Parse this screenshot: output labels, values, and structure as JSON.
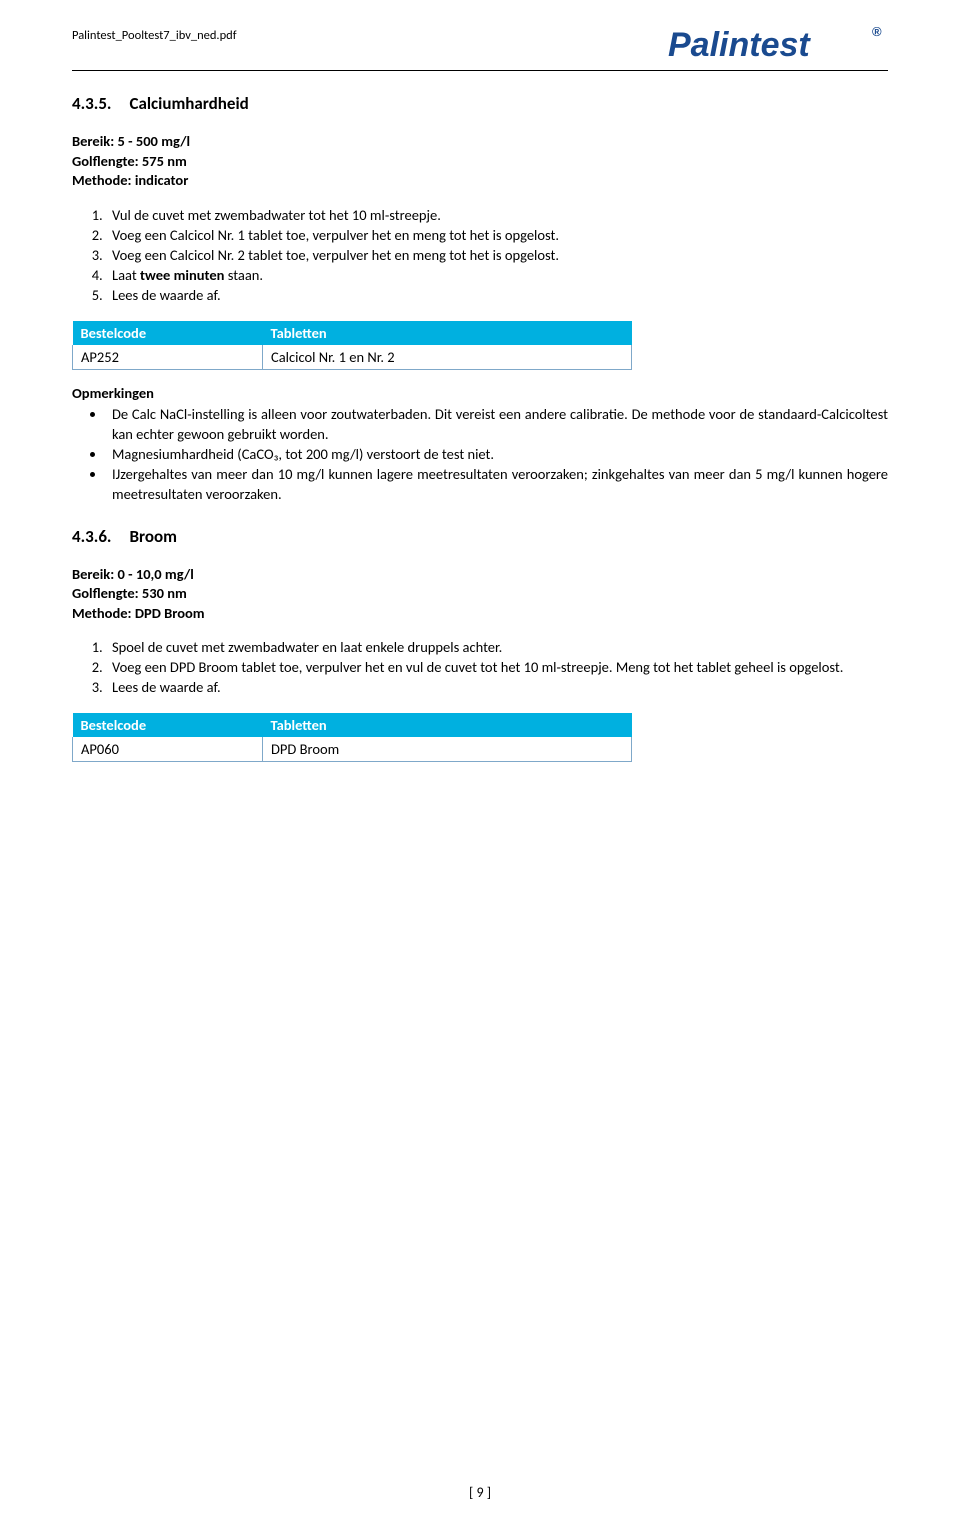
{
  "header": {
    "filename": "Palintest_Pooltest7_ibv_ned.pdf",
    "logo_text": "Palintest",
    "logo_color": "#1a4a8f"
  },
  "section1": {
    "number": "4.3.5.",
    "title": "Calciumhardheid",
    "bereik": "Bereik: 5 - 500 mg/l",
    "golflengte": "Golflengte: 575 nm",
    "methode": "Methode: indicator",
    "steps": [
      "Vul de cuvet met zwembadwater tot het 10 ml-streepje.",
      "Voeg een Calcicol Nr. 1 tablet toe, verpulver het en meng tot het is opgelost.",
      "Voeg een Calcicol Nr. 2 tablet toe, verpulver het en meng tot het is opgelost.",
      "Laat twee minuten staan.",
      "Lees de waarde af."
    ],
    "step_bold_fragment": "twee minuten",
    "table": {
      "headers": [
        "Bestelcode",
        "Tabletten"
      ],
      "row": [
        "AP252",
        "Calcicol Nr. 1 en Nr. 2"
      ]
    },
    "opm_title": "Opmerkingen",
    "opm": [
      "De Calc NaCl-instelling is alleen voor zoutwaterbaden. Dit vereist een andere calibratie. De methode voor de standaard-Calcicoltest kan echter gewoon gebruikt worden.",
      "Magnesiumhardheid (CaCO₃, tot 200 mg/l) verstoort de test niet.",
      "IJzergehaltes van meer dan 10 mg/l kunnen lagere meetresultaten veroorzaken; zinkgehaltes van meer dan 5 mg/l kunnen hogere meetresultaten veroorzaken."
    ]
  },
  "section2": {
    "number": "4.3.6.",
    "title": "Broom",
    "bereik": "Bereik: 0 - 10,0 mg/l",
    "golflengte": "Golflengte: 530 nm",
    "methode": "Methode: DPD Broom",
    "steps": [
      "Spoel de cuvet met zwembadwater en laat enkele druppels achter.",
      "Voeg een DPD Broom tablet toe, verpulver het en vul de cuvet tot het 10 ml-streepje. Meng tot het tablet geheel is opgelost.",
      "Lees de waarde af."
    ],
    "table": {
      "headers": [
        "Bestelcode",
        "Tabletten"
      ],
      "row": [
        "AP060",
        "DPD Broom"
      ]
    }
  },
  "footer": {
    "page": "[ 9 ]"
  },
  "colors": {
    "table_header_bg": "#00b0e0",
    "table_border": "#7fa8c9"
  }
}
